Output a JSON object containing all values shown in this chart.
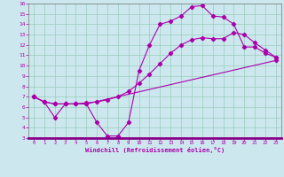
{
  "xlabel": "Windchill (Refroidissement éolien,°C)",
  "bg_color": "#cce8ee",
  "line_color": "#aa00aa",
  "grid_color": "#99ccbb",
  "xlim": [
    -0.5,
    23.5
  ],
  "ylim": [
    3,
    16
  ],
  "xticks": [
    0,
    1,
    2,
    3,
    4,
    5,
    6,
    7,
    8,
    9,
    10,
    11,
    12,
    13,
    14,
    15,
    16,
    17,
    18,
    19,
    20,
    21,
    22,
    23
  ],
  "yticks": [
    3,
    4,
    5,
    6,
    7,
    8,
    9,
    10,
    11,
    12,
    13,
    14,
    15,
    16
  ],
  "curve1_x": [
    0,
    1,
    2,
    3,
    4,
    5,
    6,
    7,
    8,
    9,
    10,
    11,
    12,
    13,
    14,
    15,
    16,
    17,
    18,
    19,
    20,
    21,
    22,
    23
  ],
  "curve1_y": [
    7.0,
    6.5,
    5.0,
    6.3,
    6.3,
    6.3,
    4.5,
    3.2,
    3.2,
    4.5,
    9.5,
    12.0,
    14.0,
    14.3,
    14.8,
    15.7,
    15.8,
    14.8,
    14.7,
    14.0,
    11.8,
    11.8,
    11.2,
    10.8
  ],
  "curve2_x": [
    0,
    1,
    2,
    3,
    4,
    5,
    23
  ],
  "curve2_y": [
    7.0,
    6.5,
    6.3,
    6.3,
    6.3,
    6.3,
    10.5
  ],
  "curve3_x": [
    0,
    1,
    2,
    3,
    4,
    5,
    6,
    7,
    8,
    9,
    10,
    11,
    12,
    13,
    14,
    15,
    16,
    17,
    18,
    19,
    20,
    21,
    22,
    23
  ],
  "curve3_y": [
    7.0,
    6.5,
    6.3,
    6.3,
    6.3,
    6.4,
    6.5,
    6.7,
    7.0,
    7.5,
    8.3,
    9.2,
    10.2,
    11.2,
    12.0,
    12.5,
    12.7,
    12.6,
    12.6,
    13.2,
    13.0,
    12.2,
    11.5,
    10.8
  ]
}
